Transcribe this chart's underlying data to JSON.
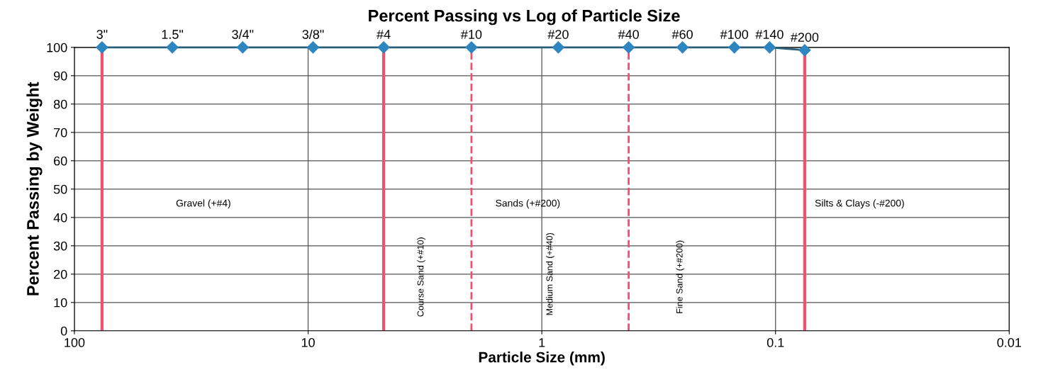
{
  "chart_data": {
    "type": "line",
    "title": "Percent Passing vs Log of Particle Size",
    "xlabel": "Particle Size (mm)",
    "ylabel": "Percent Passing by Weight",
    "log": "x",
    "x": [
      76.2,
      38.1,
      19.05,
      9.525,
      4.75,
      2.0,
      0.85,
      0.425,
      0.25,
      0.15,
      0.106,
      0.075
    ],
    "series": [
      {
        "color": "#2e86c1",
        "values": [
          100,
          100,
          100,
          100,
          100,
          100,
          100,
          100,
          100,
          100,
          100,
          99
        ]
      }
    ],
    "marker": "diamond",
    "line_style": "solid",
    "grid": true,
    "xlim": [
      100,
      0.01
    ],
    "xticks": [
      100,
      10,
      1,
      0.1,
      0.01
    ],
    "ylim": [
      0,
      100
    ],
    "yticks": [
      0,
      10,
      20,
      30,
      40,
      50,
      60,
      70,
      80,
      90,
      100
    ],
    "ref_lines": [
      {
        "axis": "x",
        "value": 76.2,
        "color": "#f0506e",
        "line_style": "solid"
      },
      {
        "axis": "x",
        "value": 4.75,
        "color": "#f0506e",
        "line_style": "solid"
      },
      {
        "axis": "x",
        "value": 0.075,
        "color": "#f0506e",
        "line_style": "solid"
      },
      {
        "axis": "x",
        "value": 2.0,
        "color": "#f0506e",
        "line_style": "dashed"
      },
      {
        "axis": "x",
        "value": 0.425,
        "color": "#f0506e",
        "line_style": "dashed"
      }
    ],
    "annotations": [
      {
        "text": "3\"",
        "x": 76.2,
        "y": 100
      },
      {
        "text": "1.5\"",
        "x": 38.1,
        "y": 100
      },
      {
        "text": "3/4\"",
        "x": 19.05,
        "y": 100
      },
      {
        "text": "3/8\"",
        "x": 9.525,
        "y": 100
      },
      {
        "text": "#4",
        "x": 4.75,
        "y": 100
      },
      {
        "text": "#10",
        "x": 2.0,
        "y": 100
      },
      {
        "text": "#20",
        "x": 0.85,
        "y": 100
      },
      {
        "text": "#40",
        "x": 0.425,
        "y": 100
      },
      {
        "text": "#60",
        "x": 0.25,
        "y": 100
      },
      {
        "text": "#100",
        "x": 0.15,
        "y": 100
      },
      {
        "text": "#140",
        "x": 0.106,
        "y": 100
      },
      {
        "text": "#200",
        "x": 0.075,
        "y": 99
      },
      "Gravel (+#4)",
      "Sands (+#200)",
      "Silts & Clays (-#200)",
      "Course Sand (+#10)",
      "Medium Sand (+#40)",
      "Fine Sand (+#200)"
    ]
  }
}
